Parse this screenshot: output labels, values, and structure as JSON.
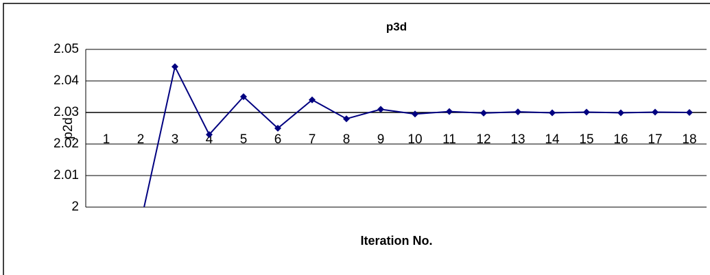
{
  "chart_data": {
    "type": "line",
    "title": "p3d",
    "y_label": "p2d",
    "x_label": "Iteration No.",
    "categories": [
      "1",
      "2",
      "3",
      "4",
      "5",
      "6",
      "7",
      "8",
      "9",
      "10",
      "11",
      "12",
      "13",
      "14",
      "15",
      "16",
      "17",
      "18"
    ],
    "series": [
      {
        "name": "p2d",
        "color": "#000080",
        "values": [
          null,
          1.995,
          2.0445,
          2.023,
          2.035,
          2.025,
          2.034,
          2.028,
          2.031,
          2.0295,
          2.0303,
          2.0298,
          2.0302,
          2.0299,
          2.0301,
          2.0299,
          2.0301,
          2.03
        ]
      }
    ],
    "ylim": [
      2,
      2.05
    ],
    "yticks": [
      2,
      2.01,
      2.02,
      2.03,
      2.04,
      2.05
    ],
    "grid": true,
    "x_axis_crosses": 2.03
  }
}
